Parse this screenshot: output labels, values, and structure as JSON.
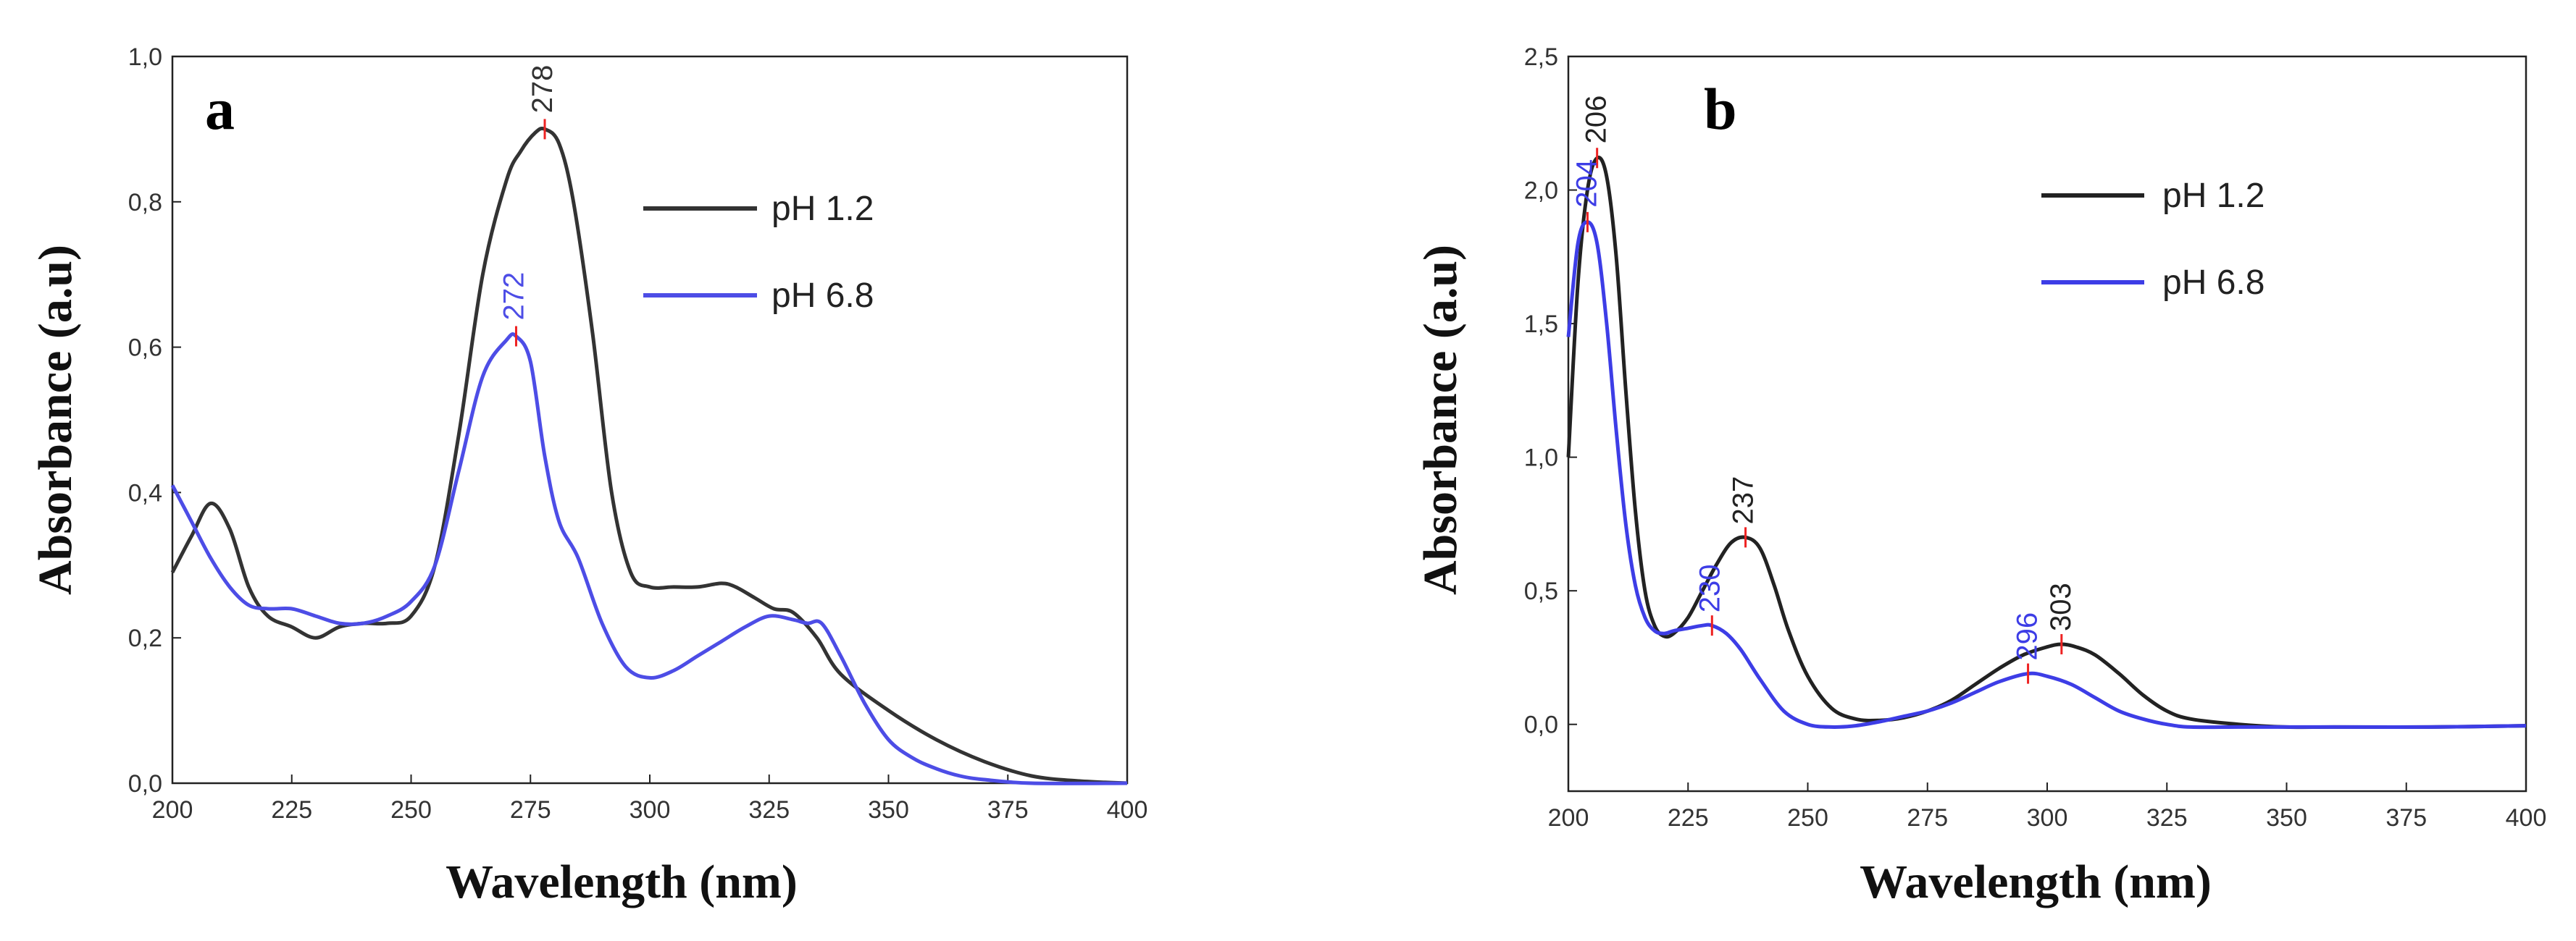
{
  "chart_data": [
    {
      "type": "line",
      "panel_label": "a",
      "xlabel": "Wavelength (nm)",
      "ylabel": "Absorbance (a.u)",
      "xlim": [
        200,
        400
      ],
      "ylim": [
        0,
        1.0
      ],
      "xticks": [
        200,
        225,
        250,
        275,
        300,
        325,
        350,
        375,
        400
      ],
      "yticks": [
        0,
        0.2,
        0.4,
        0.6,
        0.8,
        1.0
      ],
      "xtick_labels": [
        "200",
        "225",
        "250",
        "275",
        "300",
        "325",
        "350",
        "375",
        "400"
      ],
      "ytick_labels": [
        "0,0",
        "0,2",
        "0,4",
        "0,6",
        "0,8",
        "1,0"
      ],
      "legend_position": "top-right",
      "series": [
        {
          "name": "pH 1.2",
          "color": "#333333",
          "x": [
            200,
            204,
            208,
            212,
            216,
            220,
            225,
            230,
            235,
            240,
            245,
            250,
            255,
            260,
            265,
            270,
            273,
            276,
            278,
            281,
            284,
            288,
            292,
            296,
            300,
            305,
            310,
            315,
            318,
            322,
            326,
            330,
            335,
            340,
            350,
            360,
            370,
            380,
            390,
            400
          ],
          "y": [
            0.29,
            0.34,
            0.385,
            0.35,
            0.27,
            0.23,
            0.215,
            0.2,
            0.215,
            0.22,
            0.22,
            0.23,
            0.3,
            0.48,
            0.7,
            0.83,
            0.87,
            0.895,
            0.9,
            0.88,
            0.8,
            0.62,
            0.4,
            0.29,
            0.27,
            0.27,
            0.27,
            0.275,
            0.27,
            0.255,
            0.24,
            0.235,
            0.2,
            0.15,
            0.1,
            0.06,
            0.03,
            0.01,
            0.003,
            0.0
          ],
          "peaks": [
            {
              "x": 278,
              "y": 0.9,
              "label": "278"
            }
          ]
        },
        {
          "name": "pH 6.8",
          "color": "#4d4de6",
          "x": [
            200,
            204,
            208,
            212,
            216,
            220,
            225,
            230,
            235,
            240,
            245,
            250,
            255,
            260,
            265,
            270,
            272,
            275,
            278,
            281,
            285,
            290,
            295,
            300,
            305,
            310,
            315,
            320,
            325,
            330,
            333,
            336,
            340,
            345,
            350,
            355,
            360,
            365,
            370,
            380,
            400
          ],
          "y": [
            0.41,
            0.36,
            0.31,
            0.27,
            0.245,
            0.24,
            0.24,
            0.23,
            0.22,
            0.22,
            0.23,
            0.25,
            0.3,
            0.43,
            0.56,
            0.61,
            0.615,
            0.58,
            0.45,
            0.36,
            0.31,
            0.22,
            0.16,
            0.145,
            0.155,
            0.175,
            0.195,
            0.215,
            0.23,
            0.225,
            0.22,
            0.22,
            0.175,
            0.11,
            0.06,
            0.035,
            0.02,
            0.01,
            0.005,
            0.0,
            0.0
          ],
          "peaks": [
            {
              "x": 272,
              "y": 0.615,
              "label": "272"
            }
          ]
        }
      ]
    },
    {
      "type": "line",
      "panel_label": "b",
      "xlabel": "Wavelength (nm)",
      "ylabel": "Absorbance (a.u)",
      "xlim": [
        200,
        400
      ],
      "ylim": [
        -0.25,
        2.5
      ],
      "xticks": [
        200,
        225,
        250,
        275,
        300,
        325,
        350,
        375,
        400
      ],
      "yticks": [
        0,
        0.5,
        1.0,
        1.5,
        2.0,
        2.5
      ],
      "xtick_labels": [
        "200",
        "225",
        "250",
        "275",
        "300",
        "325",
        "350",
        "375",
        "400"
      ],
      "ytick_labels": [
        "0,0",
        "0,5",
        "1,0",
        "1,5",
        "2,0",
        "2,5"
      ],
      "legend_position": "top-right",
      "series": [
        {
          "name": "pH 1.2",
          "color": "#222222",
          "x": [
            200,
            202,
            204,
            206,
            208,
            210,
            212,
            214,
            216,
            218,
            220,
            222,
            225,
            228,
            231,
            234,
            237,
            240,
            243,
            246,
            250,
            255,
            260,
            265,
            270,
            275,
            280,
            285,
            290,
            295,
            300,
            303,
            306,
            310,
            315,
            320,
            325,
            330,
            340,
            350,
            360,
            380,
            400
          ],
          "y": [
            1.0,
            1.65,
            2.0,
            2.12,
            2.05,
            1.75,
            1.25,
            0.8,
            0.5,
            0.37,
            0.33,
            0.34,
            0.4,
            0.5,
            0.6,
            0.68,
            0.7,
            0.66,
            0.52,
            0.35,
            0.18,
            0.06,
            0.02,
            0.015,
            0.025,
            0.05,
            0.09,
            0.15,
            0.21,
            0.26,
            0.29,
            0.3,
            0.29,
            0.26,
            0.19,
            0.11,
            0.05,
            0.02,
            0.0,
            -0.01,
            -0.01,
            -0.01,
            -0.005
          ],
          "peaks": [
            {
              "x": 206,
              "y": 2.12,
              "label": "206"
            },
            {
              "x": 237,
              "y": 0.7,
              "label": "237"
            },
            {
              "x": 303,
              "y": 0.3,
              "label": "303"
            }
          ]
        },
        {
          "name": "pH 6.8",
          "color": "#3d3de6",
          "x": [
            200,
            202,
            204,
            206,
            208,
            210,
            212,
            214,
            216,
            218,
            220,
            222,
            225,
            228,
            230,
            233,
            236,
            240,
            245,
            250,
            255,
            260,
            265,
            270,
            275,
            280,
            285,
            290,
            296,
            300,
            305,
            310,
            315,
            320,
            325,
            330,
            340,
            350,
            360,
            380,
            400
          ],
          "y": [
            1.45,
            1.8,
            1.88,
            1.8,
            1.5,
            1.1,
            0.75,
            0.52,
            0.4,
            0.35,
            0.34,
            0.35,
            0.36,
            0.37,
            0.37,
            0.34,
            0.28,
            0.17,
            0.05,
            0.0,
            -0.01,
            -0.005,
            0.01,
            0.03,
            0.05,
            0.08,
            0.12,
            0.16,
            0.19,
            0.18,
            0.15,
            0.1,
            0.05,
            0.02,
            0.0,
            -0.01,
            -0.01,
            -0.01,
            -0.01,
            -0.01,
            -0.005
          ],
          "peaks": [
            {
              "x": 204,
              "y": 1.88,
              "label": "204"
            },
            {
              "x": 230,
              "y": 0.37,
              "label": "230"
            },
            {
              "x": 296,
              "y": 0.19,
              "label": "296"
            }
          ]
        }
      ]
    }
  ]
}
